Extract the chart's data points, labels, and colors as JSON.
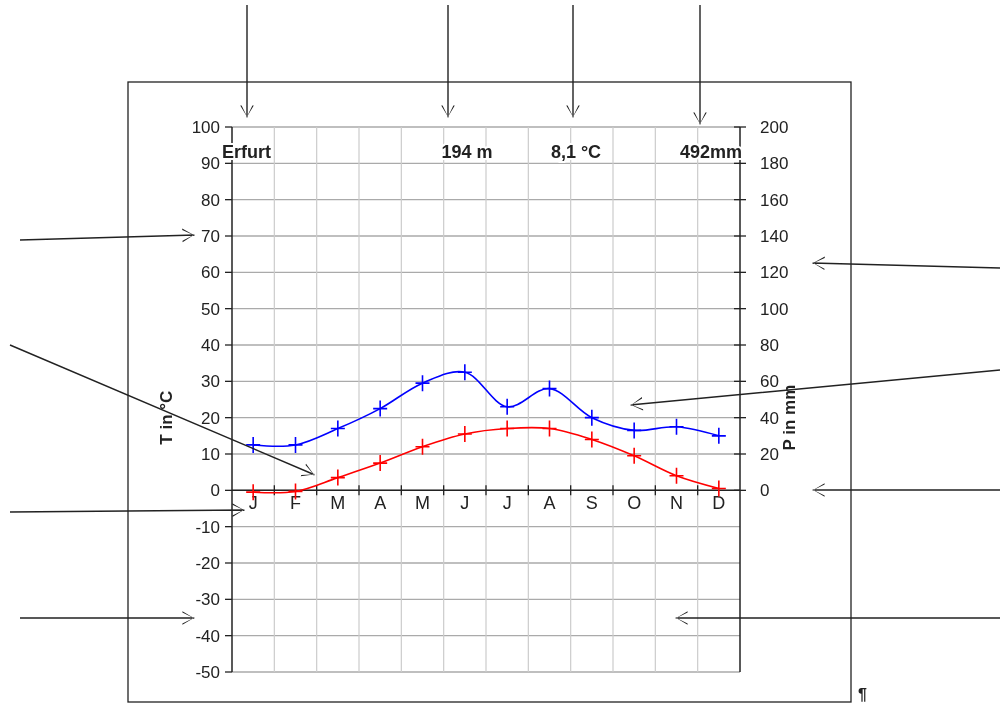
{
  "chart_data": {
    "type": "line",
    "categories": [
      "J",
      "F",
      "M",
      "A",
      "M",
      "J",
      "J",
      "A",
      "S",
      "O",
      "N",
      "D"
    ],
    "ylabel": "T in °C",
    "y2label": "P in mm",
    "annotations": [
      "Erfurt",
      "194 m",
      "8,1 °C",
      "492mm",
      "¶"
    ],
    "ylim": [
      -50,
      100
    ],
    "yticks": [
      -50,
      -40,
      -30,
      -20,
      -10,
      0,
      10,
      20,
      30,
      40,
      50,
      60,
      70,
      80,
      90,
      100
    ],
    "y2lim": [
      -100,
      200
    ],
    "y2ticks": [
      0,
      20,
      40,
      60,
      80,
      100,
      120,
      140,
      160,
      180,
      200
    ],
    "grid": true,
    "marker": "cross",
    "series": [
      {
        "color": "#ff0000",
        "values": [
          -0.5,
          -0.3,
          3.5,
          7.5,
          12,
          15.5,
          17,
          17,
          14,
          9.5,
          4,
          0.5
        ]
      },
      {
        "color": "#0000ff",
        "axis": "y2",
        "values": [
          25,
          25,
          34,
          45,
          59,
          65,
          46,
          56,
          40,
          33,
          35,
          30
        ]
      }
    ]
  }
}
